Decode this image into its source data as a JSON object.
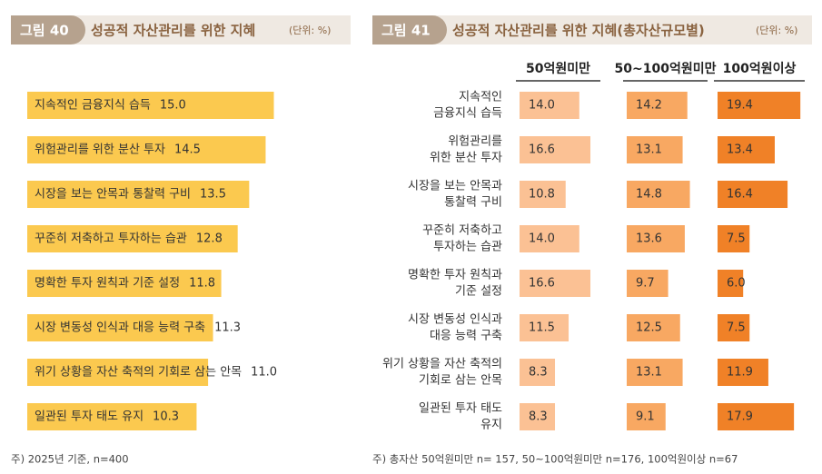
{
  "chart_data": [
    {
      "type": "bar",
      "figure_label": "그림 40",
      "title": "성공적 자산관리를 위한 지혜",
      "unit": "(단위: %)",
      "categories": [
        "지속적인 금융지식 습득",
        "위험관리를 위한 분산 투자",
        "시장을 보는 안목과 통찰력 구비",
        "꾸준히 저축하고 투자하는 습관",
        "명확한 투자 원칙과 기준 설정",
        "시장 변동성 인식과 대응 능력 구축",
        "위기 상황을 자산 축적의 기회로 삼는 안목",
        "일관된 투자 태도 유지"
      ],
      "values": [
        15.0,
        14.5,
        13.5,
        12.8,
        11.8,
        11.3,
        11.0,
        10.3
      ],
      "value_labels": [
        "15.0",
        "14.5",
        "13.5",
        "12.8",
        "11.8",
        "11.3",
        "11.0",
        "10.3"
      ],
      "color": "#fbc94f",
      "note": "주) 2025년 기준, n=400"
    },
    {
      "type": "bar",
      "figure_label": "그림 41",
      "title": "성공적 자산관리를 위한 지혜(총자산규모별)",
      "unit": "(단위: %)",
      "categories": [
        [
          "지속적인",
          "금융지식 습득"
        ],
        [
          "위험관리를",
          "위한 분산 투자"
        ],
        [
          "시장을 보는 안목과",
          "통찰력 구비"
        ],
        [
          "꾸준히 저축하고",
          "투자하는 습관"
        ],
        [
          "명확한 투자 원칙과",
          "기준 설정"
        ],
        [
          "시장 변동성 인식과",
          "대응 능력 구축"
        ],
        [
          "위기 상황을 자산 축적의",
          "기회로 삼는 안목"
        ],
        [
          "일관된 투자 태도",
          "유지"
        ]
      ],
      "series": [
        {
          "name": "50억원미만",
          "color": "#fbc194",
          "values": [
            14.0,
            16.6,
            10.8,
            14.0,
            16.6,
            11.5,
            8.3,
            8.3
          ],
          "value_labels": [
            "14.0",
            "16.6",
            "10.8",
            "14.0",
            "16.6",
            "11.5",
            "8.3",
            "8.3"
          ]
        },
        {
          "name": "50~100억원미만",
          "color": "#f8a862",
          "values": [
            14.2,
            13.1,
            14.8,
            13.6,
            9.7,
            12.5,
            13.1,
            9.1
          ],
          "value_labels": [
            "14.2",
            "13.1",
            "14.8",
            "13.6",
            "9.7",
            "12.5",
            "13.1",
            "9.1"
          ]
        },
        {
          "name": "100억원이상",
          "color": "#f08127",
          "values": [
            19.4,
            13.4,
            16.4,
            7.5,
            6.0,
            7.5,
            11.9,
            17.9
          ],
          "value_labels": [
            "19.4",
            "13.4",
            "16.4",
            "7.5",
            "6.0",
            "7.5",
            "11.9",
            "17.9"
          ]
        }
      ],
      "note": "주) 총자산 50억원미만 n= 157, 50~100억원미만 n=176, 100억원이상 n=67"
    }
  ]
}
